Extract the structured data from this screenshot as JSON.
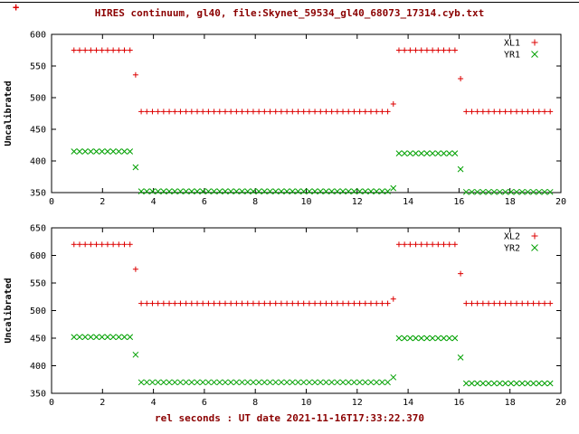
{
  "title": "HIRES continuum, gl40, file:Skynet_59534_gl40_68073_17314.cyb.txt",
  "xlabel": "rel seconds : UT date 2021-11-16T17:33:22.370",
  "stray_marker": "+",
  "colors": {
    "title_text": "#8b0000",
    "axis": "#000000",
    "xl_red": "#dd0000",
    "yr_green": "#00a000"
  },
  "chart_data": [
    {
      "type": "scatter",
      "title": "",
      "xlabel": "",
      "ylabel": "Uncalibrated",
      "xlim": [
        0,
        20
      ],
      "ylim": [
        350,
        600
      ],
      "xticks": [
        0,
        2,
        4,
        6,
        8,
        10,
        12,
        14,
        16,
        18,
        20
      ],
      "yticks": [
        350,
        400,
        450,
        500,
        550,
        600
      ],
      "grid": false,
      "legend_position": "top-right",
      "series": [
        {
          "name": "XL1",
          "marker": "plus",
          "color": "#dd0000",
          "segments": [
            {
              "x0": 0.88,
              "x1": 3.08,
              "step": 0.22,
              "y": 575
            },
            {
              "x0": 3.3,
              "x1": 3.3,
              "step": 0.22,
              "y": 536
            },
            {
              "x0": 3.52,
              "x1": 13.2,
              "step": 0.22,
              "y": 478
            },
            {
              "x0": 13.42,
              "x1": 13.42,
              "step": 0.22,
              "y": 490
            },
            {
              "x0": 13.64,
              "x1": 15.84,
              "step": 0.22,
              "y": 575
            },
            {
              "x0": 16.06,
              "x1": 16.06,
              "step": 0.22,
              "y": 530
            },
            {
              "x0": 16.28,
              "x1": 19.58,
              "step": 0.22,
              "y": 478
            }
          ]
        },
        {
          "name": "YR1",
          "marker": "cross",
          "color": "#00a000",
          "segments": [
            {
              "x0": 0.88,
              "x1": 3.08,
              "step": 0.22,
              "y": 415
            },
            {
              "x0": 3.3,
              "x1": 3.3,
              "step": 0.22,
              "y": 390
            },
            {
              "x0": 3.52,
              "x1": 13.2,
              "step": 0.22,
              "y": 352
            },
            {
              "x0": 13.42,
              "x1": 13.42,
              "step": 0.22,
              "y": 357
            },
            {
              "x0": 13.64,
              "x1": 15.84,
              "step": 0.22,
              "y": 412
            },
            {
              "x0": 16.06,
              "x1": 16.06,
              "step": 0.22,
              "y": 387
            },
            {
              "x0": 16.28,
              "x1": 19.58,
              "step": 0.22,
              "y": 351
            }
          ]
        }
      ]
    },
    {
      "type": "scatter",
      "title": "",
      "xlabel": "rel seconds : UT date 2021-11-16T17:33:22.370",
      "ylabel": "Uncalibrated",
      "xlim": [
        0,
        20
      ],
      "ylim": [
        350,
        650
      ],
      "xticks": [
        0,
        2,
        4,
        6,
        8,
        10,
        12,
        14,
        16,
        18,
        20
      ],
      "yticks": [
        350,
        400,
        450,
        500,
        550,
        600,
        650
      ],
      "grid": false,
      "legend_position": "top-right",
      "series": [
        {
          "name": "XL2",
          "marker": "plus",
          "color": "#dd0000",
          "segments": [
            {
              "x0": 0.88,
              "x1": 3.08,
              "step": 0.22,
              "y": 620
            },
            {
              "x0": 3.3,
              "x1": 3.3,
              "step": 0.22,
              "y": 575
            },
            {
              "x0": 3.52,
              "x1": 13.2,
              "step": 0.22,
              "y": 513
            },
            {
              "x0": 13.42,
              "x1": 13.42,
              "step": 0.22,
              "y": 521
            },
            {
              "x0": 13.64,
              "x1": 15.84,
              "step": 0.22,
              "y": 620
            },
            {
              "x0": 16.06,
              "x1": 16.06,
              "step": 0.22,
              "y": 567
            },
            {
              "x0": 16.28,
              "x1": 19.58,
              "step": 0.22,
              "y": 513
            }
          ]
        },
        {
          "name": "YR2",
          "marker": "cross",
          "color": "#00a000",
          "segments": [
            {
              "x0": 0.88,
              "x1": 3.08,
              "step": 0.22,
              "y": 452
            },
            {
              "x0": 3.3,
              "x1": 3.3,
              "step": 0.22,
              "y": 420
            },
            {
              "x0": 3.52,
              "x1": 13.2,
              "step": 0.22,
              "y": 370
            },
            {
              "x0": 13.42,
              "x1": 13.42,
              "step": 0.22,
              "y": 379
            },
            {
              "x0": 13.64,
              "x1": 15.84,
              "step": 0.22,
              "y": 450
            },
            {
              "x0": 16.06,
              "x1": 16.06,
              "step": 0.22,
              "y": 415
            },
            {
              "x0": 16.28,
              "x1": 19.58,
              "step": 0.22,
              "y": 368
            }
          ]
        }
      ]
    }
  ]
}
